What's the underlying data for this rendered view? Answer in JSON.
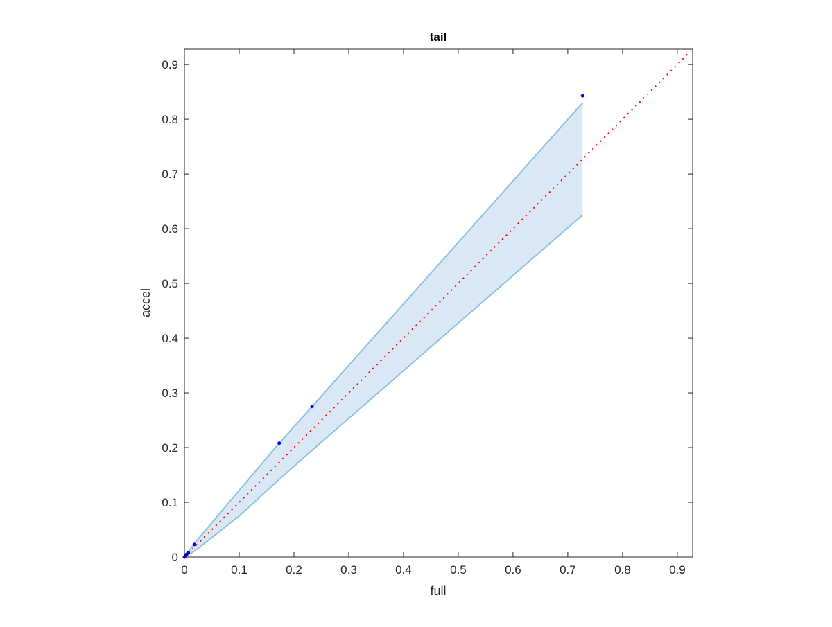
{
  "chart_data": {
    "type": "scatter",
    "title": "tail",
    "xlabel": "full",
    "ylabel": "accel",
    "xlim": [
      0,
      0.928
    ],
    "ylim": [
      0,
      0.928
    ],
    "xticks": [
      "0",
      "0.1",
      "0.2",
      "0.3",
      "0.4",
      "0.5",
      "0.6",
      "0.7",
      "0.8",
      "0.9"
    ],
    "yticks": [
      "0",
      "0.1",
      "0.2",
      "0.3",
      "0.4",
      "0.5",
      "0.6",
      "0.7",
      "0.8",
      "0.9"
    ],
    "grid": false,
    "points": {
      "color": "#0000ff",
      "x": [
        0.0,
        0.002,
        0.004,
        0.007,
        0.018,
        0.173,
        0.233,
        0.727
      ],
      "y": [
        0.0,
        0.002,
        0.005,
        0.008,
        0.023,
        0.208,
        0.275,
        0.843
      ]
    },
    "band": {
      "fill": "#d9e8f4",
      "edge": "#8fc1e0",
      "x": [
        0,
        0.02,
        0.1,
        0.173,
        0.233,
        0.727
      ],
      "upper": [
        0,
        0.027,
        0.122,
        0.208,
        0.275,
        0.83
      ],
      "lower": [
        0,
        0.012,
        0.075,
        0.142,
        0.195,
        0.625
      ]
    },
    "reference_line": {
      "color": "#ff0000",
      "style": "dotted",
      "x": [
        0,
        0.928
      ],
      "y": [
        0,
        0.928
      ]
    }
  }
}
